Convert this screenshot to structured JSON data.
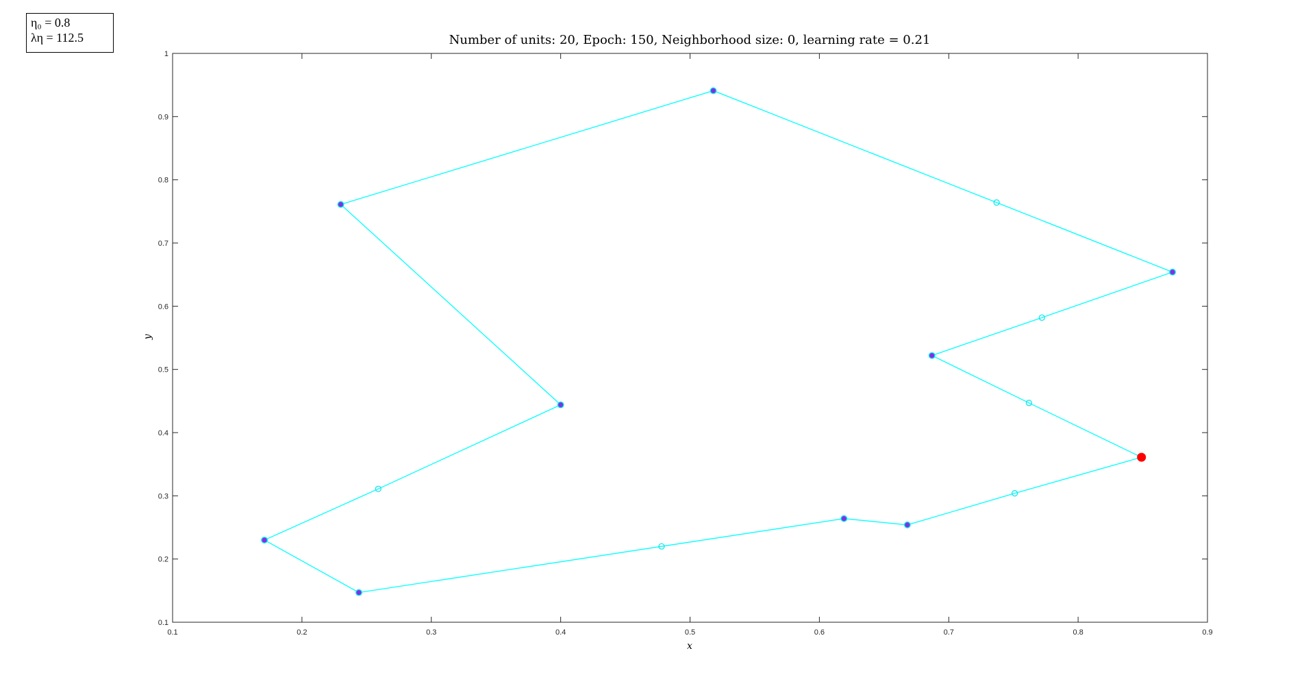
{
  "annotation": {
    "line1": "η₀ = 0.8",
    "line2": "λη = 112.5"
  },
  "chart_data": {
    "type": "line",
    "title": "Number of units: 20, Epoch: 150, Neighborhood size: 0, learning rate = 0.21",
    "xlabel": "x",
    "ylabel": "y",
    "xlim": [
      0.1,
      0.9
    ],
    "ylim": [
      0.1,
      1.0
    ],
    "xticks": [
      "0.1",
      "0.2",
      "0.3",
      "0.4",
      "0.5",
      "0.6",
      "0.7",
      "0.8",
      "0.9"
    ],
    "yticks": [
      "0.1",
      "0.2",
      "0.3",
      "0.4",
      "0.5",
      "0.6",
      "0.7",
      "0.8",
      "0.9",
      "1"
    ],
    "grid": false,
    "line_color": "#00ffff",
    "city_marker_color": "#8a2be2",
    "unit_marker_color": "#00e5ee",
    "current_marker_color": "#ff0000",
    "series": [
      {
        "role": "network-path",
        "x": [
          0.849,
          0.751,
          0.668,
          0.619,
          0.478,
          0.244,
          0.171,
          0.259,
          0.4,
          0.23,
          0.518,
          0.737,
          0.873,
          0.772,
          0.687,
          0.762,
          0.849
        ],
        "y": [
          0.361,
          0.304,
          0.254,
          0.264,
          0.22,
          0.147,
          0.23,
          0.311,
          0.444,
          0.761,
          0.941,
          0.764,
          0.654,
          0.582,
          0.522,
          0.447,
          0.361
        ]
      },
      {
        "role": "cities",
        "x": [
          0.668,
          0.619,
          0.244,
          0.171,
          0.4,
          0.23,
          0.518,
          0.873,
          0.687
        ],
        "y": [
          0.254,
          0.264,
          0.147,
          0.23,
          0.444,
          0.761,
          0.941,
          0.654,
          0.522
        ]
      },
      {
        "role": "free-units",
        "x": [
          0.751,
          0.478,
          0.259,
          0.737,
          0.772,
          0.762
        ],
        "y": [
          0.304,
          0.22,
          0.311,
          0.764,
          0.582,
          0.447
        ]
      },
      {
        "role": "current-unit",
        "x": [
          0.849
        ],
        "y": [
          0.361
        ]
      }
    ]
  }
}
